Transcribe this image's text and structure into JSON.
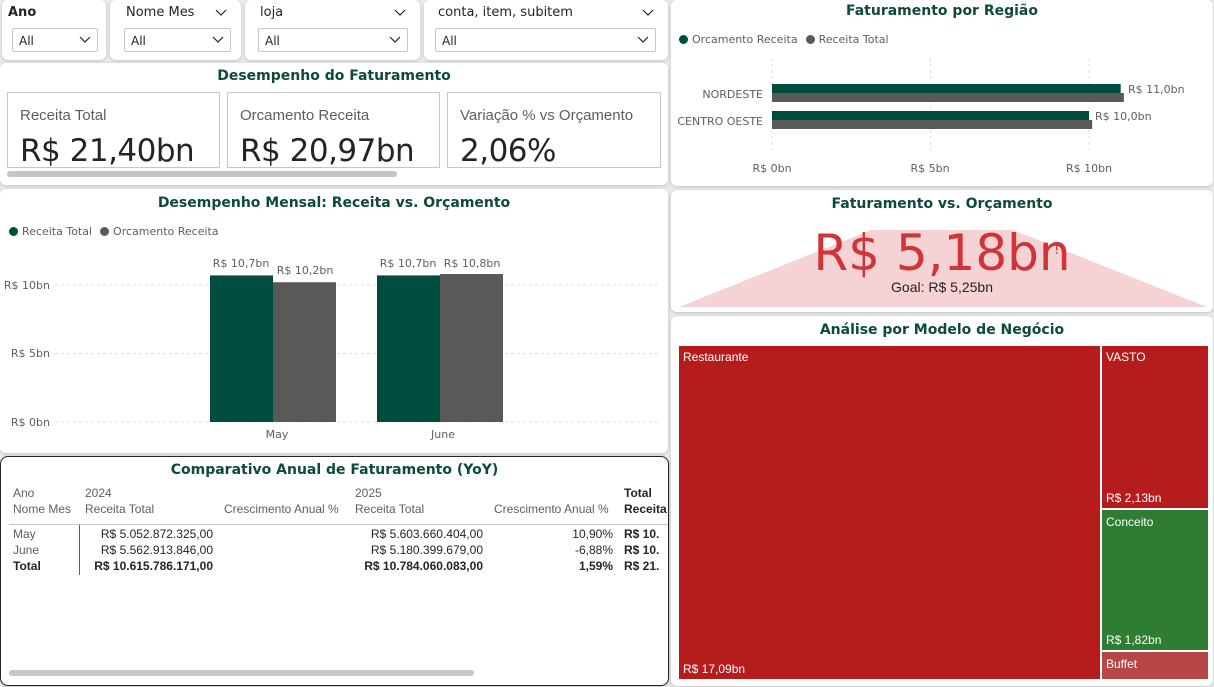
{
  "slicers": [
    {
      "label": "Ano",
      "value": "All"
    },
    {
      "label": "Nome Mes",
      "value": "All"
    },
    {
      "label": "loja",
      "value": "All"
    },
    {
      "label": "conta, item, subitem",
      "value": "All"
    }
  ],
  "kpi_section": {
    "title": "Desempenho do Faturamento",
    "cards": [
      {
        "label": "Receita Total",
        "value": "R$ 21,40bn"
      },
      {
        "label": "Orcamento Receita",
        "value": "R$ 20,97bn"
      },
      {
        "label": "Variação % vs Orçamento",
        "value": "2,06%"
      }
    ]
  },
  "monthly_chart": {
    "title": "Desempenho Mensal: Receita vs. Orçamento",
    "legend": [
      "Receita Total",
      "Orcamento Receita"
    ],
    "colors": [
      "#004d40",
      "#595959"
    ],
    "y_ticks": [
      "R$ 10bn",
      "R$ 5bn",
      "R$ 0bn"
    ],
    "data_labels": [
      "R$ 10,7bn",
      "R$ 10,2bn",
      "R$ 10,7bn",
      "R$ 10,8bn"
    ]
  },
  "region_chart": {
    "title": "Faturamento por Região",
    "legend": [
      "Orcamento Receita",
      "Receita Total"
    ],
    "colors": [
      "#004d40",
      "#595959"
    ],
    "x_ticks": [
      "R$ 0bn",
      "R$ 5bn",
      "R$ 10bn"
    ],
    "data_labels": [
      "R$ 11,0bn",
      "R$ 10,0bn"
    ]
  },
  "gauge": {
    "title": "Faturamento vs. Orçamento",
    "value": "R$ 5,18bn",
    "mark": "!",
    "goal": "Goal: R$ 5,25bn",
    "color": "#d13438"
  },
  "treemap": {
    "title": "Análise por Modelo de Negócio",
    "items": [
      {
        "name": "Restaurante",
        "value_label": "R$ 17,09bn",
        "color": "#b71c1c"
      },
      {
        "name": "VASTO",
        "value_label": "R$ 2,13bn",
        "color": "#b71c1c"
      },
      {
        "name": "Conceito",
        "value_label": "R$ 1,82bn",
        "color": "#2e7d32"
      },
      {
        "name": "Buffet",
        "value_label": "",
        "color": "#b94646"
      }
    ]
  },
  "yoy_table": {
    "title": "Comparativo Anual de Faturamento (YoY)",
    "header_row1": {
      "col0": "Ano",
      "y2024": "2024",
      "y2025": "2025",
      "total": "Total"
    },
    "header_row2": {
      "col0": "Nome Mes",
      "a": "Receita Total",
      "b": "Crescimento Anual %",
      "c": "Receita Total",
      "d": "Crescimento Anual %",
      "e": "Receita"
    },
    "rows": [
      {
        "name": "May",
        "r2024": "R$ 5.052.872.325,00",
        "g2024": "",
        "r2025": "R$ 5.603.660.404,00",
        "g2025": "10,90%",
        "total": "R$ 10."
      },
      {
        "name": "June",
        "r2024": "R$ 5.562.913.846,00",
        "g2024": "",
        "r2025": "R$ 5.180.399.679,00",
        "g2025": "-6,88%",
        "total": "R$ 10."
      },
      {
        "name": "Total",
        "r2024": "R$ 10.615.786.171,00",
        "g2024": "",
        "r2025": "R$ 10.784.060.083,00",
        "g2025": "1,59%",
        "total": "R$ 21."
      }
    ]
  },
  "chart_data": [
    {
      "type": "bar",
      "title": "Desempenho Mensal: Receita vs. Orçamento",
      "categories": [
        "May",
        "June"
      ],
      "series": [
        {
          "name": "Receita Total",
          "values": [
            10.7,
            10.7
          ]
        },
        {
          "name": "Orcamento Receita",
          "values": [
            10.2,
            10.8
          ]
        }
      ],
      "ylim": [
        0,
        12
      ],
      "legend": "top-left",
      "grid": true
    },
    {
      "type": "bar",
      "orientation": "horizontal",
      "title": "Faturamento por Região",
      "categories": [
        "NORDESTE",
        "CENTRO OESTE"
      ],
      "series": [
        {
          "name": "Orcamento Receita",
          "values": [
            11.0,
            10.0
          ]
        },
        {
          "name": "Receita Total",
          "values": [
            11.1,
            10.1
          ]
        }
      ],
      "xlim": [
        0,
        12.5
      ],
      "legend": "top-left",
      "grid": true
    }
  ]
}
